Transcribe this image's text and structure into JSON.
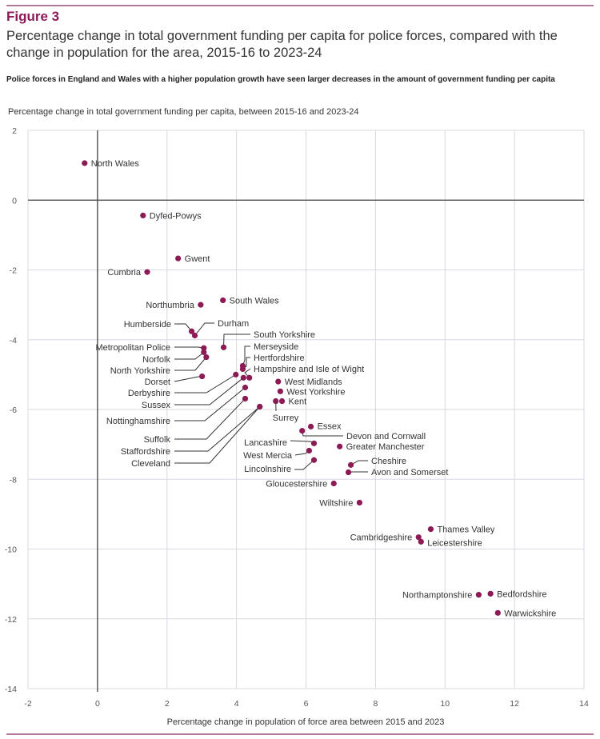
{
  "figure": {
    "label": "Figure 3",
    "title": "Percentage change in total government funding per capita for police forces, compared with the change in population for the area, 2015-16 to 2023-24",
    "subtitle": "Police forces in England and Wales with a higher population growth have seen larger decreases in the amount of government funding per capita"
  },
  "colors": {
    "accent": "#8b1a5a",
    "point": "#8b1a55",
    "rule": "#b47a9c"
  },
  "chart_data": {
    "type": "scatter",
    "title": "Percentage change in total government funding per capita for police forces, compared with the change in population for the area, 2015-16 to 2023-24",
    "xlabel": "Percentage change in population of force area between 2015 and 2023",
    "ylabel": "Percentage change in total government funding per capita, between 2015-16 and 2023-24",
    "xlim": [
      -2,
      14
    ],
    "ylim": [
      -14,
      2
    ],
    "xticks": [
      -2,
      0,
      2,
      4,
      6,
      8,
      10,
      12,
      14
    ],
    "yticks": [
      2,
      0,
      -2,
      -4,
      -6,
      -8,
      -10,
      -12,
      -14
    ],
    "grid": true,
    "legend": "none",
    "points": [
      {
        "name": "North Wales",
        "x": -0.37,
        "y": 1.06
      },
      {
        "name": "Dyfed-Powys",
        "x": 1.31,
        "y": -0.44
      },
      {
        "name": "Gwent",
        "x": 2.32,
        "y": -1.67
      },
      {
        "name": "Cumbria",
        "x": 1.43,
        "y": -2.06
      },
      {
        "name": "Northumbria",
        "x": 2.97,
        "y": -3.0
      },
      {
        "name": "South Wales",
        "x": 3.61,
        "y": -2.87
      },
      {
        "name": "Humberside",
        "x": 2.71,
        "y": -3.76
      },
      {
        "name": "Durham",
        "x": 2.8,
        "y": -3.88
      },
      {
        "name": "South Yorkshire",
        "x": 3.63,
        "y": -4.22
      },
      {
        "name": "Metropolitan Police",
        "x": 3.06,
        "y": -4.24
      },
      {
        "name": "Norfolk",
        "x": 3.06,
        "y": -4.36
      },
      {
        "name": "North Yorkshire",
        "x": 3.13,
        "y": -4.5
      },
      {
        "name": "Merseyside",
        "x": 4.18,
        "y": -4.75
      },
      {
        "name": "Hertfordshire",
        "x": 4.18,
        "y": -4.84
      },
      {
        "name": "Hampshire and Isle of Wight",
        "x": 4.37,
        "y": -5.09
      },
      {
        "name": "Dorset",
        "x": 3.01,
        "y": -5.05
      },
      {
        "name": "Derbyshire",
        "x": 3.98,
        "y": -5.0
      },
      {
        "name": "Sussex",
        "x": 4.2,
        "y": -5.09
      },
      {
        "name": "Nottinghamshire",
        "x": 4.25,
        "y": -5.37
      },
      {
        "name": "Suffolk",
        "x": 4.25,
        "y": -5.69
      },
      {
        "name": "Staffordshire",
        "x": 4.67,
        "y": -5.92
      },
      {
        "name": "Cleveland",
        "x": 4.67,
        "y": -5.92
      },
      {
        "name": "West Midlands",
        "x": 5.2,
        "y": -5.2
      },
      {
        "name": "West Yorkshire",
        "x": 5.26,
        "y": -5.48
      },
      {
        "name": "Surrey",
        "x": 5.13,
        "y": -5.76
      },
      {
        "name": "Kent",
        "x": 5.31,
        "y": -5.76
      },
      {
        "name": "Essex",
        "x": 6.14,
        "y": -6.49
      },
      {
        "name": "Devon and Cornwall",
        "x": 5.89,
        "y": -6.61
      },
      {
        "name": "Lancashire",
        "x": 6.23,
        "y": -6.97
      },
      {
        "name": "Greater Manchester",
        "x": 6.97,
        "y": -7.06
      },
      {
        "name": "West Mercia",
        "x": 6.09,
        "y": -7.18
      },
      {
        "name": "Lincolnshire",
        "x": 6.23,
        "y": -7.45
      },
      {
        "name": "Cheshire",
        "x": 7.29,
        "y": -7.59
      },
      {
        "name": "Avon and Somerset",
        "x": 7.22,
        "y": -7.8
      },
      {
        "name": "Gloucestershire",
        "x": 6.8,
        "y": -8.12
      },
      {
        "name": "Wiltshire",
        "x": 7.54,
        "y": -8.67
      },
      {
        "name": "Thames Valley",
        "x": 9.59,
        "y": -9.43
      },
      {
        "name": "Cambridgeshire",
        "x": 9.24,
        "y": -9.66
      },
      {
        "name": "Leicestershire",
        "x": 9.31,
        "y": -9.79
      },
      {
        "name": "Northamptonshire",
        "x": 10.97,
        "y": -11.31
      },
      {
        "name": "Bedfordshire",
        "x": 11.31,
        "y": -11.28
      },
      {
        "name": "Warwickshire",
        "x": 11.52,
        "y": -11.83
      }
    ]
  }
}
